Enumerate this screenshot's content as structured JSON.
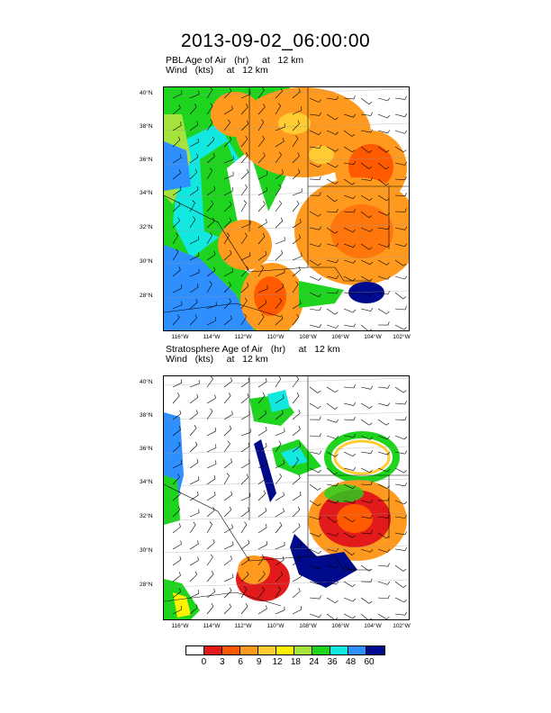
{
  "title": "2013-09-02_06:00:00",
  "panels": [
    {
      "line1": "PBL Age of Air   (hr)     at   12 km",
      "line2": "Wind   (kts)     at   12 km"
    },
    {
      "line1": "Stratosphere Age of Air   (hr)     at   12 km",
      "line2": "Wind   (kts)     at   12 km"
    }
  ],
  "lat_labels": [
    "40°N",
    "38°N",
    "36°N",
    "34°N",
    "32°N",
    "30°N",
    "28°N"
  ],
  "lon_labels": [
    "116°W",
    "114°W",
    "112°W",
    "110°W",
    "108°W",
    "106°W",
    "104°W",
    "102°W"
  ],
  "colorbar": {
    "labels": [
      "0",
      "3",
      "6",
      "9",
      "12",
      "18",
      "24",
      "36",
      "48",
      "60"
    ],
    "colors": [
      "#ffffff",
      "#e31a1c",
      "#ff5a00",
      "#ff9a1e",
      "#ffcc33",
      "#fff200",
      "#a6e33c",
      "#1fd41f",
      "#12e8e0",
      "#2f8fff",
      "#000a8c"
    ]
  }
}
